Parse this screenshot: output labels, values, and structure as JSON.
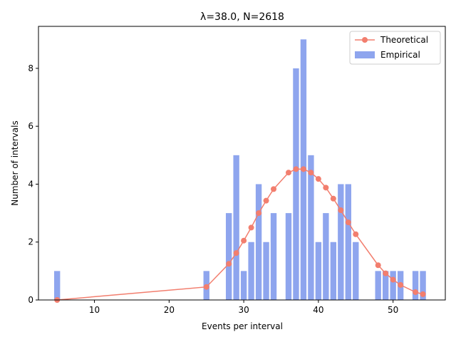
{
  "chart_data": {
    "type": "bar",
    "title": "λ=38.0, N=2618",
    "xlabel": "Events per interval",
    "ylabel": "Number of intervals",
    "xlim": [
      2.5,
      57.0
    ],
    "ylim": [
      0,
      9.45
    ],
    "xticks": [
      10,
      20,
      30,
      40,
      50
    ],
    "yticks": [
      0,
      2,
      4,
      6,
      8
    ],
    "grid": false,
    "legend_position": "top-right",
    "colors": {
      "bar": "#8ea5ee",
      "line": "#f27e6e"
    },
    "series": [
      {
        "name": "Theoretical",
        "kind": "line",
        "points": [
          [
            5,
            0.0
          ],
          [
            25,
            0.45
          ],
          [
            28,
            1.25
          ],
          [
            29,
            1.62
          ],
          [
            30,
            2.05
          ],
          [
            31,
            2.5
          ],
          [
            32,
            3.0
          ],
          [
            33,
            3.43
          ],
          [
            34,
            3.83
          ],
          [
            36,
            4.4
          ],
          [
            37,
            4.52
          ],
          [
            38,
            4.52
          ],
          [
            39,
            4.4
          ],
          [
            40,
            4.18
          ],
          [
            41,
            3.88
          ],
          [
            42,
            3.5
          ],
          [
            43,
            3.1
          ],
          [
            44,
            2.68
          ],
          [
            45,
            2.27
          ],
          [
            48,
            1.2
          ],
          [
            49,
            0.92
          ],
          [
            50,
            0.7
          ],
          [
            51,
            0.52
          ],
          [
            53,
            0.27
          ],
          [
            54,
            0.2
          ]
        ]
      },
      {
        "name": "Empirical",
        "kind": "bar",
        "points": [
          [
            5,
            1
          ],
          [
            25,
            1
          ],
          [
            28,
            3
          ],
          [
            29,
            5
          ],
          [
            30,
            1
          ],
          [
            31,
            2
          ],
          [
            32,
            4
          ],
          [
            33,
            2
          ],
          [
            34,
            3
          ],
          [
            36,
            3
          ],
          [
            37,
            8
          ],
          [
            38,
            9
          ],
          [
            39,
            5
          ],
          [
            40,
            2
          ],
          [
            41,
            3
          ],
          [
            42,
            2
          ],
          [
            43,
            4
          ],
          [
            44,
            4
          ],
          [
            45,
            2
          ],
          [
            48,
            1
          ],
          [
            49,
            1
          ],
          [
            50,
            1
          ],
          [
            51,
            1
          ],
          [
            53,
            1
          ],
          [
            54,
            1
          ]
        ]
      }
    ]
  }
}
